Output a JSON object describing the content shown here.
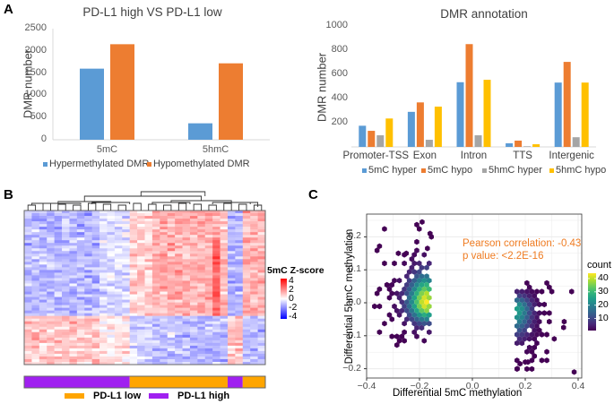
{
  "panels": {
    "A": "A",
    "B": "B",
    "C": "C"
  },
  "chart_data": [
    {
      "id": "A-left",
      "type": "bar",
      "title": "PD-L1 high VS PD-L1 low",
      "xlabel": "",
      "ylabel": "DMR number",
      "ylim": [
        0,
        2500
      ],
      "yticks": [
        0,
        500,
        1000,
        1500,
        2000,
        2500
      ],
      "categories": [
        "5mC",
        "5hmC"
      ],
      "series": [
        {
          "name": "Hypermethylated DMR",
          "color": "#5b9bd5",
          "values": [
            1600,
            370
          ]
        },
        {
          "name": "Hypomethylated DMR",
          "color": "#ed7d31",
          "values": [
            2150,
            1720
          ]
        }
      ],
      "grid": false,
      "legend": "bottom"
    },
    {
      "id": "A-right",
      "type": "bar",
      "title": "DMR annotation",
      "xlabel": "",
      "ylabel": "DMR number",
      "ylim": [
        0,
        1000
      ],
      "yticks": [
        200,
        400,
        600,
        800,
        1000
      ],
      "categories": [
        "Promoter-TSS",
        "Exon",
        "Intron",
        "TTS",
        "Intergenic"
      ],
      "series": [
        {
          "name": "5mC hyper",
          "color": "#5b9bd5",
          "values": [
            175,
            290,
            535,
            30,
            532
          ]
        },
        {
          "name": "5mC hypo",
          "color": "#ed7d31",
          "values": [
            133,
            368,
            850,
            52,
            703
          ]
        },
        {
          "name": "5hmC hyper",
          "color": "#a5a5a5",
          "values": [
            96,
            59,
            96,
            5,
            80
          ]
        },
        {
          "name": "5hmC hypo",
          "color": "#ffc000",
          "values": [
            235,
            333,
            555,
            22,
            532
          ]
        }
      ],
      "grid": false,
      "legend": "bottom"
    },
    {
      "id": "B",
      "type": "heatmap",
      "title": "",
      "legend_title": "5mC Z-score",
      "color_scale": {
        "min": -4,
        "max": 4,
        "ticks": [
          4,
          2,
          0,
          -2,
          -4
        ],
        "low": "#0000ff",
        "mid": "#ffffff",
        "high": "#ff0000"
      },
      "n_columns": 32,
      "n_rows": 57,
      "column_dendrogram": true,
      "annotation": {
        "segments": [
          {
            "group": "PD-L1 high",
            "columns": 14
          },
          {
            "group": "PD-L1 low",
            "columns": 13
          },
          {
            "group": "PD-L1 high",
            "columns": 2
          },
          {
            "group": "PD-L1 low",
            "columns": 3
          }
        ],
        "legend": [
          {
            "label": "PD-L1 low",
            "color": "#ffa500"
          },
          {
            "label": "PD-L1 high",
            "color": "#a020f0"
          }
        ]
      },
      "blocks": [
        {
          "rows": "top ~68%",
          "cols": "PD-L1 high (left)",
          "trend": "negative (blue)"
        },
        {
          "rows": "top ~68%",
          "cols": "PD-L1 low (right)",
          "trend": "positive (red)"
        },
        {
          "rows": "bottom ~32%",
          "cols": "PD-L1 high (left)",
          "trend": "positive (red)"
        },
        {
          "rows": "bottom ~32%",
          "cols": "PD-L1 low (right)",
          "trend": "negative (blue)"
        }
      ]
    },
    {
      "id": "C",
      "type": "heatmap",
      "subtype": "hexbin",
      "title": "",
      "xlabel": "Differential 5mC methylation",
      "ylabel": "Differential 5hmC methylation",
      "xlim": [
        -0.4,
        0.42
      ],
      "ylim": [
        -0.23,
        0.27
      ],
      "xticks": [
        -0.4,
        -0.2,
        0.0,
        0.2,
        0.4
      ],
      "xtick_labels": [
        "−0.4",
        "−0.2",
        "0.0",
        "0.2",
        "0.4"
      ],
      "yticks": [
        -0.2,
        -0.1,
        0.0,
        0.1,
        0.2
      ],
      "ytick_labels": [
        "−0.2",
        "−0.1",
        "0.0",
        "0.1",
        "0.2"
      ],
      "grid": true,
      "legend_title": "count",
      "legend_ticks": [
        40,
        30,
        20,
        10
      ],
      "count_range": [
        1,
        44
      ],
      "annotation": [
        "Pearson correlation: -0.43",
        "p value: <2.2E-16"
      ],
      "annotation_color": "#ef7c22",
      "clusters": [
        {
          "center": [
            -0.17,
            0.0
          ],
          "x_range": [
            -0.37,
            -0.15
          ],
          "y_range": [
            -0.13,
            0.25
          ],
          "peak_count": 44
        },
        {
          "center": [
            0.17,
            -0.02
          ],
          "x_range": [
            0.15,
            0.38
          ],
          "y_range": [
            -0.21,
            0.06
          ],
          "peak_count": 25
        }
      ],
      "outliers": [
        [
          -0.19,
          0.245
        ],
        [
          -0.16,
          0.21
        ],
        [
          -0.155,
          0.2
        ],
        [
          -0.17,
          0.165
        ],
        [
          -0.28,
          0.15
        ],
        [
          -0.25,
          0.15
        ],
        [
          0.345,
          -0.075
        ],
        [
          0.385,
          -0.21
        ],
        [
          0.18,
          -0.185
        ],
        [
          0.2,
          -0.18
        ],
        [
          0.21,
          -0.18
        ],
        [
          0.17,
          -0.2
        ]
      ]
    }
  ]
}
